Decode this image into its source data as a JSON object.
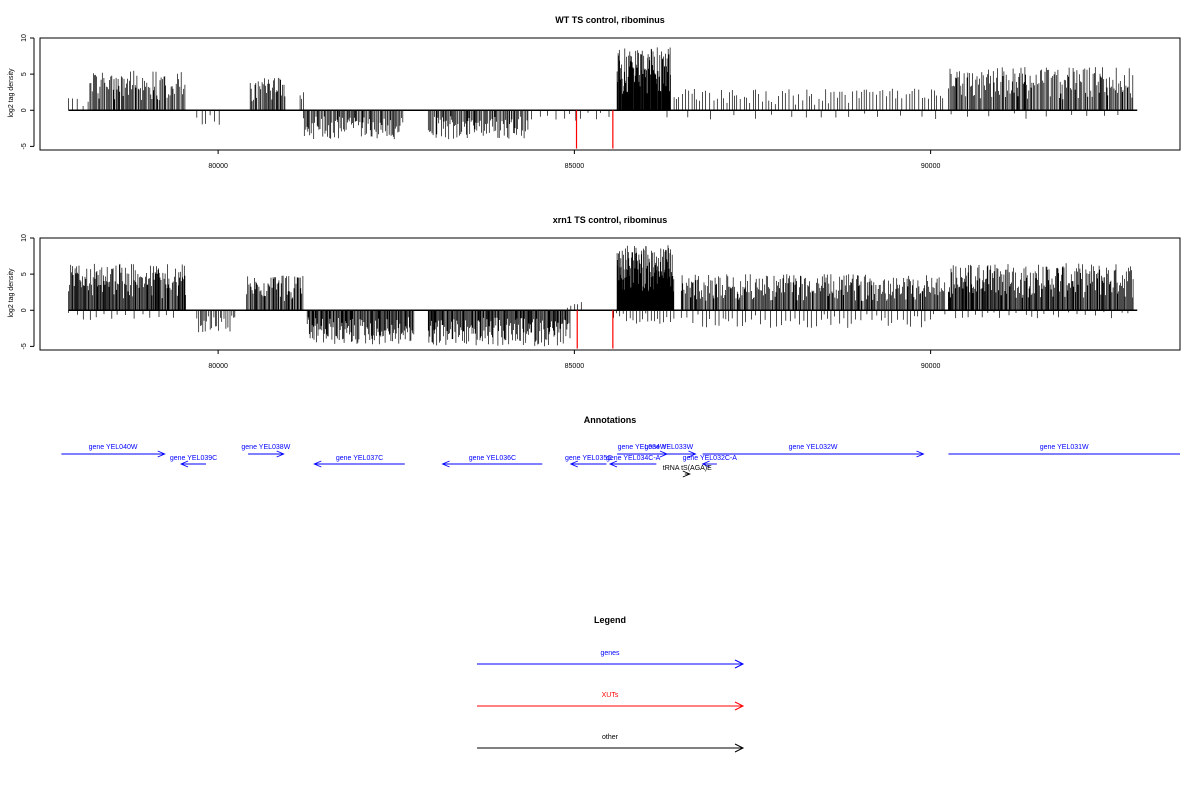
{
  "panels": [
    {
      "title": "WT TS control, ribominus",
      "ylabel": "log2 tag density",
      "xlim": [
        77500,
        93500
      ],
      "ylim": [
        -5.5,
        10
      ],
      "yticks": [
        -5,
        0,
        5,
        10
      ],
      "yticklabels": [
        "-5",
        "0",
        "5",
        "10"
      ],
      "xticks": [
        80000,
        85000,
        90000
      ],
      "xticklabels": [
        "80000",
        "85000",
        "90000"
      ],
      "baseline": [
        77900,
        92900
      ],
      "forward_segments": [
        {
          "start": 77900,
          "end": 78200,
          "amp": 1.8,
          "step": 70
        },
        {
          "start": 78200,
          "end": 79550,
          "amp": 5.5,
          "step": 16
        },
        {
          "start": 80450,
          "end": 80950,
          "amp": 4.5,
          "step": 16
        },
        {
          "start": 81150,
          "end": 81220,
          "amp": 2.5,
          "step": 20
        },
        {
          "start": 85600,
          "end": 86350,
          "amp": 8.8,
          "step": 8
        },
        {
          "start": 86400,
          "end": 90200,
          "amp": 3.0,
          "step": 45
        },
        {
          "start": 90250,
          "end": 92850,
          "amp": 6.0,
          "step": 16
        }
      ],
      "reverse_segments": [
        {
          "start": 79700,
          "end": 80050,
          "amp": 2.3,
          "step": 60
        },
        {
          "start": 81200,
          "end": 82600,
          "amp": 4.0,
          "step": 16
        },
        {
          "start": 82950,
          "end": 84350,
          "amp": 4.0,
          "step": 16
        },
        {
          "start": 84400,
          "end": 85500,
          "amp": 1.5,
          "step": 90
        },
        {
          "start": 86300,
          "end": 92800,
          "amp": 1.3,
          "step": 260
        }
      ],
      "red_spikes": [
        {
          "x": 85030,
          "y": -5.3
        },
        {
          "x": 85540,
          "y": -5.3
        }
      ]
    },
    {
      "title": "xrn1 TS control, ribominus",
      "ylabel": "log2 tag density",
      "xlim": [
        77500,
        93500
      ],
      "ylim": [
        -5.5,
        10
      ],
      "yticks": [
        -5,
        0,
        5,
        10
      ],
      "yticklabels": [
        "-5",
        "0",
        "5",
        "10"
      ],
      "xticks": [
        80000,
        85000,
        90000
      ],
      "xticklabels": [
        "80000",
        "85000",
        "90000"
      ],
      "baseline": [
        77900,
        92900
      ],
      "forward_segments": [
        {
          "start": 77900,
          "end": 79550,
          "amp": 6.5,
          "step": 12
        },
        {
          "start": 80400,
          "end": 81200,
          "amp": 4.8,
          "step": 14
        },
        {
          "start": 84900,
          "end": 85100,
          "amp": 1.2,
          "step": 40
        },
        {
          "start": 85600,
          "end": 86400,
          "amp": 9.0,
          "step": 7
        },
        {
          "start": 86500,
          "end": 90200,
          "amp": 5.0,
          "step": 14
        },
        {
          "start": 90250,
          "end": 92850,
          "amp": 6.5,
          "step": 12
        }
      ],
      "reverse_segments": [
        {
          "start": 77900,
          "end": 79500,
          "amp": 1.5,
          "step": 120
        },
        {
          "start": 79700,
          "end": 80250,
          "amp": 3.2,
          "step": 25
        },
        {
          "start": 81250,
          "end": 82750,
          "amp": 4.8,
          "step": 12
        },
        {
          "start": 82950,
          "end": 84950,
          "amp": 5.0,
          "step": 12
        },
        {
          "start": 85550,
          "end": 86400,
          "amp": 2.0,
          "step": 40
        },
        {
          "start": 86500,
          "end": 90100,
          "amp": 2.6,
          "step": 60
        },
        {
          "start": 90200,
          "end": 92800,
          "amp": 1.2,
          "step": 110
        }
      ],
      "red_spikes": [
        {
          "x": 85040,
          "y": -5.3
        },
        {
          "x": 85540,
          "y": -5.3
        }
      ]
    }
  ],
  "annotations": {
    "title": "Annotations",
    "xlim": [
      77500,
      93500
    ],
    "items": [
      {
        "label": "gene YEL040W",
        "start": 77800,
        "end": 79250,
        "strand": "+",
        "row": 0,
        "color": "blue"
      },
      {
        "label": "gene YEL039C",
        "start": 79480,
        "end": 79830,
        "strand": "-",
        "row": 1,
        "color": "blue"
      },
      {
        "label": "gene YEL038W",
        "start": 80420,
        "end": 80920,
        "strand": "+",
        "row": 0,
        "color": "blue"
      },
      {
        "label": "gene YEL037C",
        "start": 81350,
        "end": 82620,
        "strand": "-",
        "row": 1,
        "color": "blue"
      },
      {
        "label": "gene YEL036C",
        "start": 83150,
        "end": 84550,
        "strand": "-",
        "row": 1,
        "color": "blue"
      },
      {
        "label": "gene YEL034W",
        "start": 85600,
        "end": 86300,
        "strand": "+",
        "row": 0,
        "color": "blue"
      },
      {
        "label": "gene YEL035C",
        "start": 84950,
        "end": 85450,
        "strand": "-",
        "row": 1,
        "color": "blue"
      },
      {
        "label": "gene YEL034C-A",
        "start": 85500,
        "end": 86150,
        "strand": "-",
        "row": 1,
        "color": "blue"
      },
      {
        "label": "gene YEL033W",
        "start": 85950,
        "end": 86700,
        "strand": "+",
        "row": 0,
        "color": "blue"
      },
      {
        "label": "gene YEL032C-A",
        "start": 86800,
        "end": 87000,
        "strand": "-",
        "row": 1,
        "color": "blue"
      },
      {
        "label": "gene YEL032W",
        "start": 86800,
        "end": 89900,
        "strand": "+",
        "row": 0,
        "color": "blue"
      },
      {
        "label": "gene YEL031W",
        "start": 90250,
        "end": 93500,
        "strand": "+",
        "row": 0,
        "color": "blue",
        "no_head": true
      },
      {
        "label": "tRNA tS(AGA)E",
        "start": 86550,
        "end": 86620,
        "strand": "+",
        "row": 2,
        "color": "black"
      }
    ]
  },
  "legend": {
    "title": "Legend",
    "entries": [
      {
        "label": "genes",
        "color": "#0000ff"
      },
      {
        "label": "XUTs",
        "color": "#ff0000"
      },
      {
        "label": "other",
        "color": "#000000"
      }
    ]
  },
  "colors": {
    "gene": "#0000ff",
    "xut": "#ff0000",
    "other": "#000000"
  }
}
